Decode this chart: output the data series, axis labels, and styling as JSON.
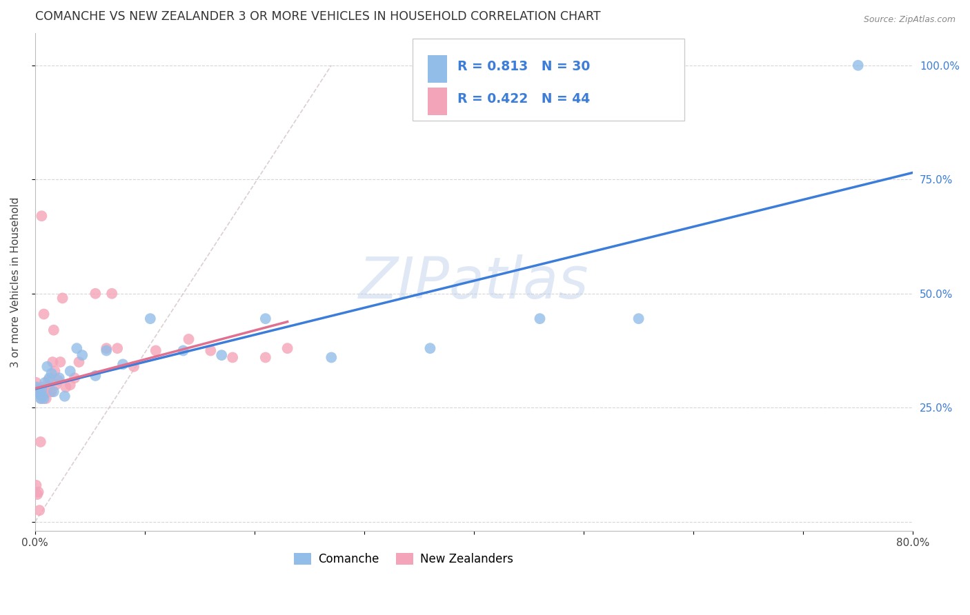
{
  "title": "COMANCHE VS NEW ZEALANDER 3 OR MORE VEHICLES IN HOUSEHOLD CORRELATION CHART",
  "source": "Source: ZipAtlas.com",
  "ylabel": "3 or more Vehicles in Household",
  "xlim": [
    0.0,
    0.8
  ],
  "ylim": [
    -0.02,
    1.07
  ],
  "xticks": [
    0.0,
    0.1,
    0.2,
    0.3,
    0.4,
    0.5,
    0.6,
    0.7,
    0.8
  ],
  "xticklabels": [
    "0.0%",
    "",
    "",
    "",
    "",
    "",
    "",
    "",
    "80.0%"
  ],
  "ytick_positions": [
    0.0,
    0.25,
    0.5,
    0.75,
    1.0
  ],
  "yticklabels_right": [
    "",
    "25.0%",
    "50.0%",
    "75.0%",
    "100.0%"
  ],
  "grid_color": "#cccccc",
  "background_color": "#ffffff",
  "watermark": "ZIPatlas",
  "legend_r1": "0.813",
  "legend_n1": "30",
  "legend_r2": "0.422",
  "legend_n2": "44",
  "comanche_color": "#92BDE8",
  "nz_color": "#F4A4B8",
  "blue_line_color": "#3B7DD8",
  "pink_line_color": "#E07090",
  "diag_line_color": "#CCBBBB",
  "comanche_label": "Comanche",
  "nz_label": "New Zealanders",
  "comanche_x": [
    0.001,
    0.002,
    0.003,
    0.004,
    0.005,
    0.006,
    0.007,
    0.008,
    0.009,
    0.011,
    0.013,
    0.015,
    0.017,
    0.022,
    0.027,
    0.032,
    0.038,
    0.043,
    0.055,
    0.065,
    0.08,
    0.105,
    0.135,
    0.17,
    0.21,
    0.27,
    0.36,
    0.46,
    0.55,
    0.75
  ],
  "comanche_y": [
    0.295,
    0.285,
    0.29,
    0.28,
    0.27,
    0.29,
    0.275,
    0.27,
    0.305,
    0.34,
    0.315,
    0.325,
    0.285,
    0.315,
    0.275,
    0.33,
    0.38,
    0.365,
    0.32,
    0.375,
    0.345,
    0.445,
    0.375,
    0.365,
    0.445,
    0.36,
    0.38,
    0.445,
    0.445,
    1.0
  ],
  "nz_x": [
    0.001,
    0.002,
    0.003,
    0.004,
    0.005,
    0.006,
    0.007,
    0.008,
    0.009,
    0.01,
    0.011,
    0.012,
    0.013,
    0.014,
    0.015,
    0.016,
    0.017,
    0.018,
    0.019,
    0.021,
    0.023,
    0.025,
    0.028,
    0.032,
    0.036,
    0.04,
    0.055,
    0.065,
    0.07,
    0.075,
    0.09,
    0.11,
    0.14,
    0.16,
    0.18,
    0.21,
    0.23,
    0.001,
    0.002,
    0.003,
    0.004,
    0.005,
    0.006,
    0.008
  ],
  "nz_y": [
    0.305,
    0.295,
    0.29,
    0.285,
    0.28,
    0.27,
    0.295,
    0.285,
    0.28,
    0.27,
    0.285,
    0.31,
    0.295,
    0.285,
    0.285,
    0.35,
    0.42,
    0.33,
    0.3,
    0.31,
    0.35,
    0.49,
    0.295,
    0.3,
    0.315,
    0.35,
    0.5,
    0.38,
    0.5,
    0.38,
    0.34,
    0.375,
    0.4,
    0.375,
    0.36,
    0.36,
    0.38,
    0.08,
    0.06,
    0.065,
    0.025,
    0.175,
    0.67,
    0.455
  ]
}
